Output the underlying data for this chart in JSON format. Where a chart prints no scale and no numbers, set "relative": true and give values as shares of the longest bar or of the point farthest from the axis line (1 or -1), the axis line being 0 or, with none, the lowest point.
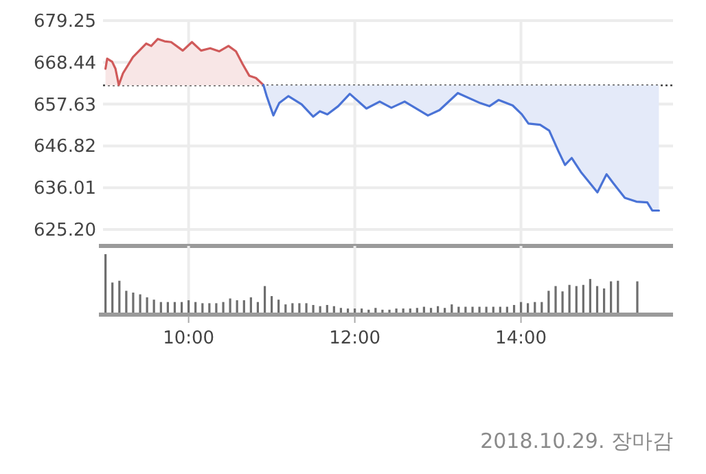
{
  "chart_data": [
    {
      "type": "line",
      "xlim": [
        8.97,
        15.83
      ],
      "xticks": [
        {
          "value": 10,
          "label": null
        },
        {
          "value": 12,
          "label": null
        },
        {
          "value": 14,
          "label": null
        }
      ],
      "ylim": [
        621.3,
        679.25
      ],
      "yticks": [
        {
          "value": 625.2,
          "label": "625.20"
        },
        {
          "value": 636.01,
          "label": "636.01"
        },
        {
          "value": 646.82,
          "label": "646.82"
        },
        {
          "value": 657.63,
          "label": "657.63"
        },
        {
          "value": 668.44,
          "label": "668.44"
        },
        {
          "value": 679.25,
          "label": "679.25"
        }
      ],
      "tick_labels": "y",
      "grid": true,
      "ref_lines": [
        {
          "axis": "y",
          "value": 662.5,
          "color": "#444444",
          "line_style": "dotted"
        }
      ],
      "series": [
        {
          "color": "#d05a5a",
          "x": [
            9.0,
            9.02,
            9.08,
            9.12,
            9.16,
            9.21,
            9.33,
            9.49,
            9.55,
            9.63,
            9.71,
            9.79,
            9.93,
            10.04,
            10.15,
            10.26,
            10.37,
            10.48,
            10.57,
            10.65,
            10.73,
            10.81,
            10.9
          ],
          "values": [
            666.8,
            669.4,
            668.6,
            666.8,
            662.6,
            665.6,
            669.8,
            673.3,
            672.7,
            674.5,
            673.9,
            673.7,
            671.5,
            673.7,
            671.5,
            672.1,
            671.3,
            672.7,
            671.3,
            668.0,
            665.0,
            664.4,
            662.6
          ],
          "upper": [
            666.8,
            669.4,
            668.6,
            666.8,
            662.6,
            665.6,
            669.8,
            673.3,
            672.7,
            674.5,
            673.9,
            673.7,
            671.5,
            673.7,
            671.5,
            672.1,
            671.3,
            672.7,
            671.3,
            668.0,
            665.0,
            664.4,
            662.6
          ],
          "lower": [
            662.5,
            662.5,
            662.5,
            662.5,
            662.5,
            662.5,
            662.5,
            662.5,
            662.5,
            662.5,
            662.5,
            662.5,
            662.5,
            662.5,
            662.5,
            662.5,
            662.5,
            662.5,
            662.5,
            662.5,
            662.5,
            662.5,
            662.5
          ]
        },
        {
          "color": "#4a73d6",
          "x": [
            10.9,
            10.94,
            11.02,
            11.09,
            11.2,
            11.36,
            11.5,
            11.58,
            11.67,
            11.8,
            11.94,
            12.14,
            12.3,
            12.44,
            12.6,
            12.88,
            13.02,
            13.24,
            13.51,
            13.62,
            13.73,
            13.9,
            14.01,
            14.09,
            14.23,
            14.34,
            14.45,
            14.53,
            14.61,
            14.72,
            14.92,
            15.03,
            15.11,
            15.25,
            15.39,
            15.52,
            15.58,
            15.66
          ],
          "values": [
            662.6,
            659.7,
            654.7,
            657.9,
            659.7,
            657.6,
            654.4,
            655.8,
            655.0,
            657.1,
            660.3,
            656.5,
            658.3,
            656.7,
            658.3,
            654.7,
            656.1,
            660.5,
            657.9,
            657.1,
            658.7,
            657.3,
            655.0,
            652.6,
            652.3,
            650.8,
            645.5,
            641.9,
            643.7,
            640.1,
            634.8,
            639.5,
            637.2,
            633.4,
            632.4,
            632.2,
            630.1,
            630.1
          ],
          "upper": [
            662.6,
            659.7,
            654.7,
            657.9,
            659.7,
            657.6,
            654.4,
            655.8,
            655.0,
            657.1,
            660.3,
            656.5,
            658.3,
            656.7,
            658.3,
            654.7,
            656.1,
            660.5,
            657.9,
            657.1,
            658.7,
            657.3,
            655.0,
            652.6,
            652.3,
            650.8,
            645.5,
            641.9,
            643.7,
            640.1,
            634.8,
            639.5,
            637.2,
            633.4,
            632.4,
            632.2,
            630.1,
            630.1
          ],
          "lower": [
            662.5,
            662.5,
            662.5,
            662.5,
            662.5,
            662.5,
            662.5,
            662.5,
            662.5,
            662.5,
            662.5,
            662.5,
            662.5,
            662.5,
            662.5,
            662.5,
            662.5,
            662.5,
            662.5,
            662.5,
            662.5,
            662.5,
            662.5,
            662.5,
            662.5,
            662.5,
            662.5,
            662.5,
            662.5,
            662.5,
            662.5,
            662.5,
            662.5,
            662.5,
            662.5,
            662.5,
            662.5,
            662.5
          ]
        }
      ]
    },
    {
      "type": "bar",
      "relative": true,
      "color": "#6e6e6e",
      "xlim": [
        8.97,
        15.83
      ],
      "xticks": [
        {
          "value": 10,
          "label": "10:00"
        },
        {
          "value": 12,
          "label": "12:00"
        },
        {
          "value": 14,
          "label": "14:00"
        }
      ],
      "tick_labels": "x",
      "grid": "x",
      "x": [
        9.0,
        9.083,
        9.167,
        9.25,
        9.333,
        9.417,
        9.5,
        9.583,
        9.667,
        9.75,
        9.833,
        9.917,
        10.0,
        10.083,
        10.167,
        10.25,
        10.333,
        10.417,
        10.5,
        10.583,
        10.667,
        10.75,
        10.833,
        10.917,
        11.0,
        11.083,
        11.167,
        11.25,
        11.333,
        11.417,
        11.5,
        11.583,
        11.667,
        11.75,
        11.833,
        11.917,
        12.0,
        12.083,
        12.167,
        12.25,
        12.333,
        12.417,
        12.5,
        12.583,
        12.667,
        12.75,
        12.833,
        12.917,
        13.0,
        13.083,
        13.167,
        13.25,
        13.333,
        13.417,
        13.5,
        13.583,
        13.667,
        13.75,
        13.833,
        13.917,
        14.0,
        14.083,
        14.167,
        14.25,
        14.333,
        14.417,
        14.5,
        14.583,
        14.667,
        14.75,
        14.833,
        14.917,
        15.0,
        15.083,
        15.167,
        15.4
      ],
      "values": [
        1,
        0.52,
        0.55,
        0.38,
        0.35,
        0.32,
        0.27,
        0.23,
        0.19,
        0.19,
        0.19,
        0.19,
        0.22,
        0.19,
        0.17,
        0.17,
        0.17,
        0.19,
        0.25,
        0.22,
        0.22,
        0.27,
        0.19,
        0.46,
        0.29,
        0.23,
        0.15,
        0.17,
        0.17,
        0.17,
        0.14,
        0.12,
        0.14,
        0.12,
        0.09,
        0.08,
        0.08,
        0.08,
        0.06,
        0.09,
        0.06,
        0.06,
        0.08,
        0.08,
        0.08,
        0.09,
        0.11,
        0.09,
        0.12,
        0.09,
        0.15,
        0.11,
        0.11,
        0.11,
        0.11,
        0.11,
        0.11,
        0.11,
        0.11,
        0.14,
        0.19,
        0.17,
        0.19,
        0.19,
        0.38,
        0.46,
        0.37,
        0.48,
        0.46,
        0.48,
        0.58,
        0.46,
        0.42,
        0.54,
        0.55,
        0.54
      ],
      "annotations": [
        "2018.10.29. 장마감"
      ]
    }
  ]
}
